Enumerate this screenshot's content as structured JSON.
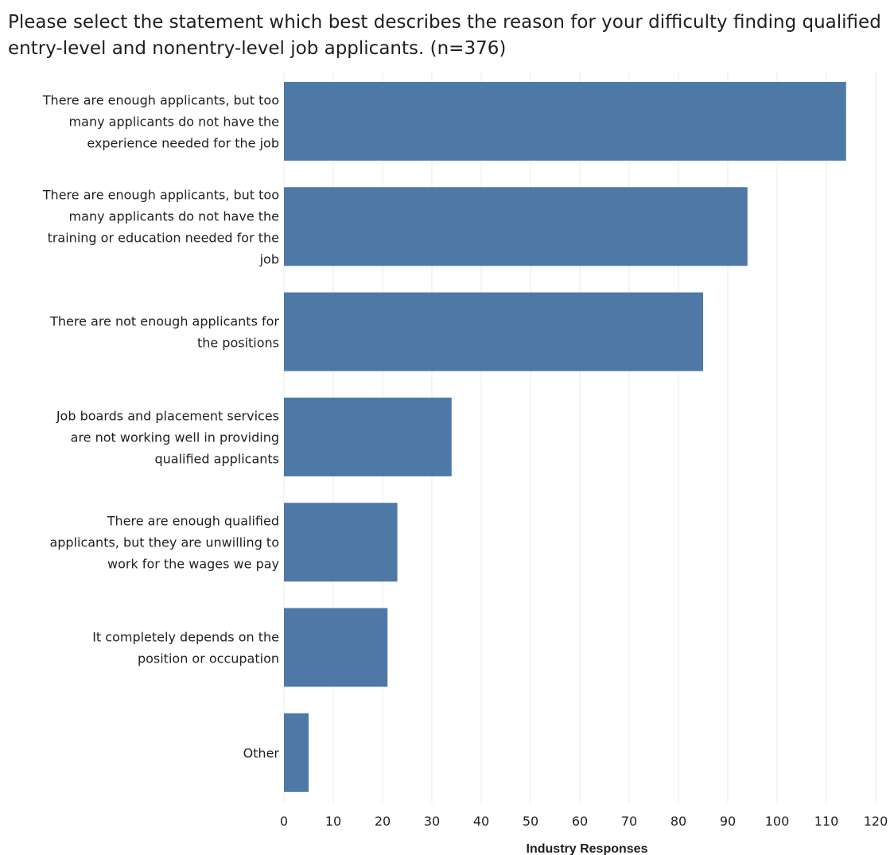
{
  "chart_data": {
    "type": "bar",
    "orientation": "horizontal",
    "title": "Please select the statement which best describes the reason for your difficulty finding qualified entry-level and nonentry-level job applicants. (n=376)",
    "xlabel": "Industry Responses",
    "ylabel": "",
    "xlim": [
      0,
      120
    ],
    "xticks": [
      0,
      10,
      20,
      30,
      40,
      50,
      60,
      70,
      80,
      90,
      100,
      110,
      120
    ],
    "grid": true,
    "bar_color": "#4e79a7",
    "grid_color": "#ebebeb",
    "categories": [
      [
        "There are enough applicants, but too",
        "many applicants do not have the",
        "experience needed for the job"
      ],
      [
        "There are enough applicants, but too",
        "many applicants do not have the",
        "training or education needed for the",
        "job"
      ],
      [
        "There are not enough applicants for",
        "the positions"
      ],
      [
        "Job boards and placement services",
        "are not working well in providing",
        "qualified applicants"
      ],
      [
        "There are enough qualified",
        "applicants, but they are unwilling to",
        "work for the wages we pay"
      ],
      [
        "It completely depends on the",
        "position or occupation"
      ],
      [
        "Other"
      ]
    ],
    "values": [
      114,
      94,
      85,
      34,
      23,
      21,
      5
    ]
  }
}
